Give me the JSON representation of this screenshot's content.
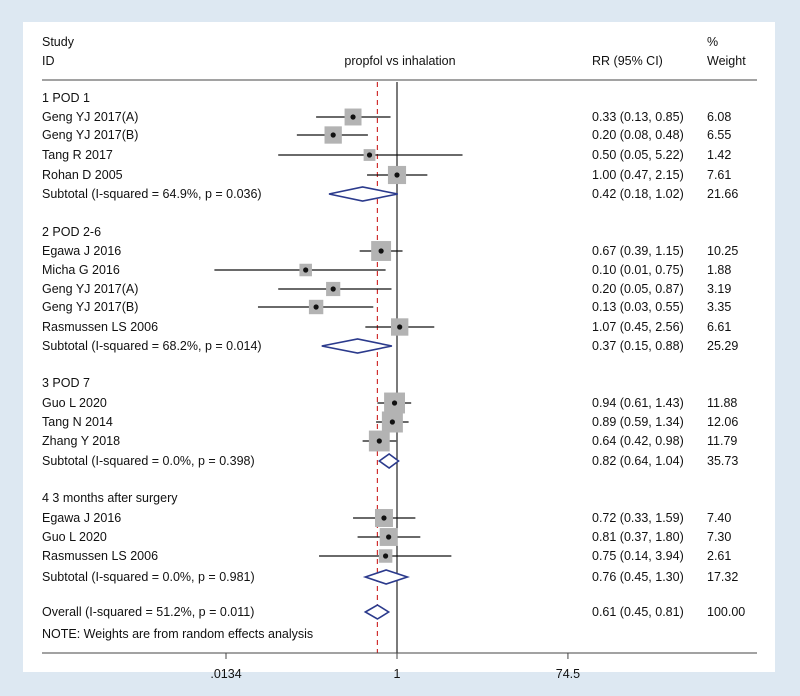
{
  "chart_data": {
    "type": "forest",
    "title": "propfol vs inhalation",
    "headers": {
      "study_line1": "Study",
      "study_line2": "ID",
      "rr": "RR (95% CI)",
      "weight_line1": "%",
      "weight_line2": "Weight"
    },
    "x_axis": {
      "scale": "log",
      "ticks": [
        0.0134,
        1,
        74.5
      ],
      "tick_labels": [
        ".0134",
        "1",
        "74.5"
      ]
    },
    "reference_line": 1,
    "overall_rr_line": 0.61,
    "groups": [
      {
        "label": "1  POD 1",
        "studies": [
          {
            "id": "Geng YJ 2017(A)",
            "rr": 0.33,
            "lo": 0.13,
            "hi": 0.85,
            "ci_text": "0.33 (0.13, 0.85)",
            "weight": "6.08"
          },
          {
            "id": "Geng YJ 2017(B)",
            "rr": 0.2,
            "lo": 0.08,
            "hi": 0.48,
            "ci_text": "0.20 (0.08, 0.48)",
            "weight": "6.55"
          },
          {
            "id": "Tang R 2017",
            "rr": 0.5,
            "lo": 0.05,
            "hi": 5.22,
            "ci_text": "0.50 (0.05, 5.22)",
            "weight": "1.42"
          },
          {
            "id": "Rohan D 2005",
            "rr": 1.0,
            "lo": 0.47,
            "hi": 2.15,
            "ci_text": "1.00 (0.47, 2.15)",
            "weight": "7.61"
          }
        ],
        "subtotal": {
          "label": "Subtotal  (I-squared = 64.9%, p = 0.036)",
          "rr": 0.42,
          "lo": 0.18,
          "hi": 1.02,
          "ci_text": "0.42 (0.18, 1.02)",
          "weight": "21.66"
        }
      },
      {
        "label": "2  POD 2-6",
        "studies": [
          {
            "id": "Egawa J 2016",
            "rr": 0.67,
            "lo": 0.39,
            "hi": 1.15,
            "ci_text": "0.67 (0.39, 1.15)",
            "weight": "10.25"
          },
          {
            "id": "Micha G 2016",
            "rr": 0.1,
            "lo": 0.01,
            "hi": 0.75,
            "ci_text": "0.10 (0.01, 0.75)",
            "weight": "1.88"
          },
          {
            "id": "Geng YJ 2017(A)",
            "rr": 0.2,
            "lo": 0.05,
            "hi": 0.87,
            "ci_text": "0.20 (0.05, 0.87)",
            "weight": "3.19"
          },
          {
            "id": "Geng YJ 2017(B)",
            "rr": 0.13,
            "lo": 0.03,
            "hi": 0.55,
            "ci_text": "0.13 (0.03, 0.55)",
            "weight": "3.35"
          },
          {
            "id": "Rasmussen LS 2006",
            "rr": 1.07,
            "lo": 0.45,
            "hi": 2.56,
            "ci_text": "1.07 (0.45, 2.56)",
            "weight": "6.61"
          }
        ],
        "subtotal": {
          "label": "Subtotal  (I-squared = 68.2%, p = 0.014)",
          "rr": 0.37,
          "lo": 0.15,
          "hi": 0.88,
          "ci_text": "0.37 (0.15, 0.88)",
          "weight": "25.29"
        }
      },
      {
        "label": "3  POD 7",
        "studies": [
          {
            "id": "Guo L 2020",
            "rr": 0.94,
            "lo": 0.61,
            "hi": 1.43,
            "ci_text": "0.94 (0.61, 1.43)",
            "weight": "11.88"
          },
          {
            "id": "Tang N 2014",
            "rr": 0.89,
            "lo": 0.59,
            "hi": 1.34,
            "ci_text": "0.89 (0.59, 1.34)",
            "weight": "12.06"
          },
          {
            "id": "Zhang Y 2018",
            "rr": 0.64,
            "lo": 0.42,
            "hi": 0.98,
            "ci_text": "0.64 (0.42, 0.98)",
            "weight": "11.79"
          }
        ],
        "subtotal": {
          "label": "Subtotal  (I-squared = 0.0%, p = 0.398)",
          "rr": 0.82,
          "lo": 0.64,
          "hi": 1.04,
          "ci_text": "0.82 (0.64, 1.04)",
          "weight": "35.73"
        }
      },
      {
        "label": "4  3 months after surgery",
        "studies": [
          {
            "id": "Egawa J 2016",
            "rr": 0.72,
            "lo": 0.33,
            "hi": 1.59,
            "ci_text": "0.72 (0.33, 1.59)",
            "weight": "7.40"
          },
          {
            "id": "Guo L 2020",
            "rr": 0.81,
            "lo": 0.37,
            "hi": 1.8,
            "ci_text": "0.81 (0.37, 1.80)",
            "weight": "7.30"
          },
          {
            "id": "Rasmussen LS 2006",
            "rr": 0.75,
            "lo": 0.14,
            "hi": 3.94,
            "ci_text": "0.75 (0.14, 3.94)",
            "weight": "2.61"
          }
        ],
        "subtotal": {
          "label": "Subtotal  (I-squared = 0.0%, p = 0.981)",
          "rr": 0.76,
          "lo": 0.45,
          "hi": 1.3,
          "ci_text": "0.76 (0.45, 1.30)",
          "weight": "17.32"
        }
      }
    ],
    "overall": {
      "label": "Overall  (I-squared = 51.2%, p = 0.011)",
      "rr": 0.61,
      "lo": 0.45,
      "hi": 0.81,
      "ci_text": "0.61 (0.45, 0.81)",
      "weight": "100.00"
    },
    "note": "NOTE: Weights are from random effects analysis",
    "colors": {
      "background": "#dde8f2",
      "panel": "#ffffff",
      "box": "#b3b3b3",
      "diamond": "#2b3a8c",
      "dashed": "#d03030",
      "text": "#111111"
    }
  }
}
